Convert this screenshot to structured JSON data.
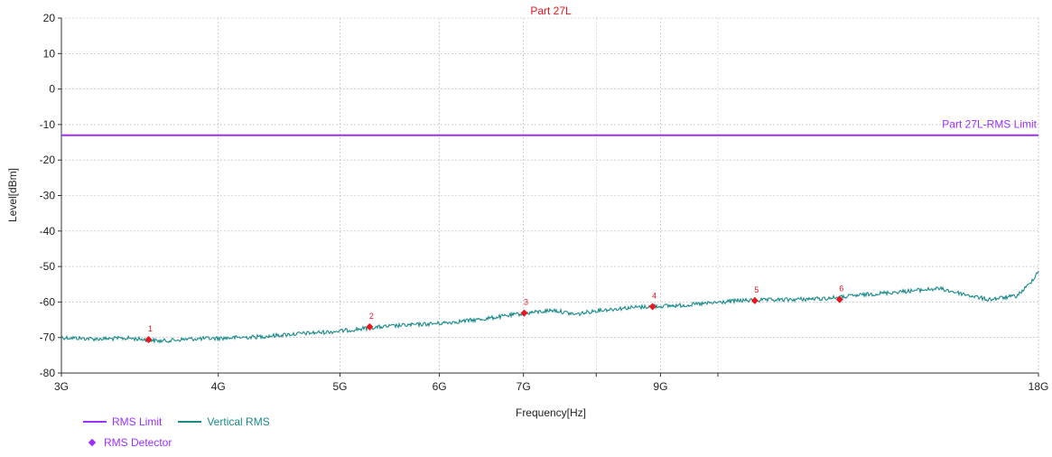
{
  "chart_data": {
    "type": "line",
    "title": "Part 27L",
    "xlabel": "Frequency[Hz]",
    "ylabel": "Level[dBm]",
    "xscale": "log",
    "xlim": [
      3,
      18
    ],
    "ylim": [
      -80,
      20
    ],
    "grid": true,
    "x_ticks": [
      {
        "value": 3,
        "label": "3G"
      },
      {
        "value": 4,
        "label": "4G"
      },
      {
        "value": 5,
        "label": "5G"
      },
      {
        "value": 6,
        "label": "6G"
      },
      {
        "value": 7,
        "label": "7G"
      },
      {
        "value": 9,
        "label": "9G"
      },
      {
        "value": 18,
        "label": "18G"
      }
    ],
    "x_minor_grid": [
      8,
      10
    ],
    "y_ticks": [
      20,
      10,
      0,
      -10,
      -20,
      -30,
      -40,
      -50,
      -60,
      -70,
      -80
    ],
    "limit_line": {
      "name": "RMS Limit",
      "label": "Part 27L-RMS Limit",
      "value": -13,
      "color": "#9b30ff"
    },
    "series": [
      {
        "name": "Vertical RMS",
        "color": "#1a8a8a",
        "unit_x": "GHz",
        "points": [
          [
            3.0,
            -70.0
          ],
          [
            3.2,
            -70.4
          ],
          [
            3.4,
            -70.2
          ],
          [
            3.6,
            -71.0
          ],
          [
            3.8,
            -70.4
          ],
          [
            4.0,
            -70.2
          ],
          [
            4.3,
            -69.8
          ],
          [
            4.6,
            -69.0
          ],
          [
            5.0,
            -68.2
          ],
          [
            5.3,
            -67.2
          ],
          [
            5.6,
            -66.6
          ],
          [
            6.0,
            -66.0
          ],
          [
            6.5,
            -64.8
          ],
          [
            7.0,
            -63.2
          ],
          [
            7.4,
            -62.3
          ],
          [
            7.7,
            -63.5
          ],
          [
            8.0,
            -62.4
          ],
          [
            8.5,
            -61.6
          ],
          [
            8.9,
            -61.2
          ],
          [
            9.3,
            -61.0
          ],
          [
            9.8,
            -60.4
          ],
          [
            10.4,
            -59.6
          ],
          [
            11.2,
            -59.4
          ],
          [
            12.2,
            -59.0
          ],
          [
            13.2,
            -57.8
          ],
          [
            14.3,
            -56.8
          ],
          [
            15.0,
            -56.2
          ],
          [
            15.7,
            -57.8
          ],
          [
            16.4,
            -59.3
          ],
          [
            17.3,
            -58.3
          ],
          [
            17.7,
            -55.0
          ],
          [
            18.0,
            -51.3
          ]
        ]
      }
    ],
    "markers": [
      {
        "label": "1",
        "x": 3.52,
        "y": -70.6
      },
      {
        "label": "2",
        "x": 5.28,
        "y": -67.0
      },
      {
        "label": "3",
        "x": 7.01,
        "y": -63.1
      },
      {
        "label": "4",
        "x": 8.87,
        "y": -61.3
      },
      {
        "label": "5",
        "x": 10.7,
        "y": -59.6
      },
      {
        "label": "6",
        "x": 12.5,
        "y": -59.3
      }
    ],
    "marker_color": "#e8161e",
    "legend": {
      "position": "bottom-left",
      "items": [
        {
          "label": "RMS Limit",
          "kind": "line",
          "color": "#9b30ff"
        },
        {
          "label": "Vertical RMS",
          "kind": "line",
          "color": "#1a8a8a"
        },
        {
          "label": "RMS Detector",
          "kind": "diamond",
          "color": "#9b30ff"
        }
      ]
    }
  }
}
